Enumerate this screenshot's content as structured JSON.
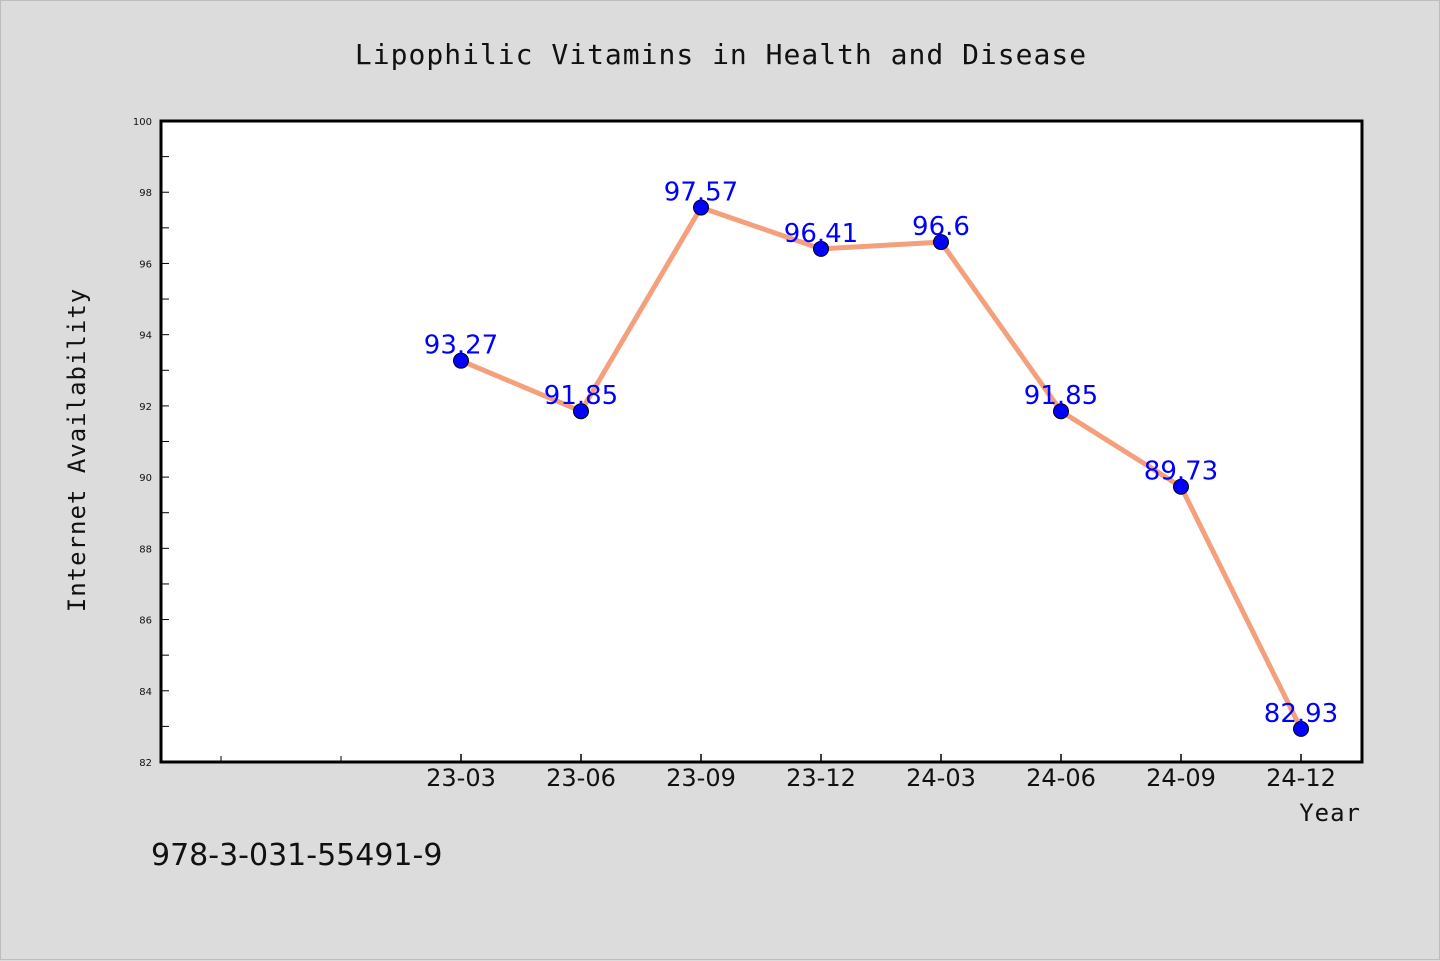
{
  "chart_data": {
    "type": "line",
    "title": "Lipophilic Vitamins in Health and Disease",
    "xlabel": "Year",
    "ylabel": "Internet Availability",
    "categories": [
      "23-03",
      "23-06",
      "23-09",
      "23-12",
      "24-03",
      "24-06",
      "24-09",
      "24-12"
    ],
    "series": [
      {
        "values": [
          93.27,
          91.85,
          97.57,
          96.41,
          96.6,
          91.85,
          89.73,
          82.93
        ],
        "labels": [
          "93.27",
          "91.85",
          "97.57",
          "96.41",
          "96.6",
          "91.85",
          "89.73",
          "82.93"
        ],
        "line_color": "#f4a07c",
        "marker_color": "#0000ff"
      }
    ],
    "ylim": [
      82,
      100
    ],
    "yticks": [
      "82",
      "84",
      "86",
      "88",
      "90",
      "92",
      "94",
      "96",
      "98",
      "100"
    ],
    "grid": false,
    "legend": "none"
  },
  "footnote": "978-3-031-55491-9"
}
